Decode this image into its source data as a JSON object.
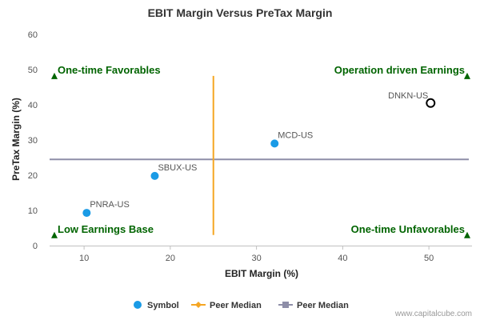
{
  "chart_data": {
    "type": "scatter",
    "title": "EBIT Margin Versus PreTax Margin",
    "xlabel": "EBIT Margin (%)",
    "ylabel": "PreTax Margin (%)",
    "xlim": [
      6,
      55
    ],
    "ylim": [
      0,
      60
    ],
    "xticks": [
      10,
      20,
      30,
      40,
      50
    ],
    "yticks": [
      0,
      10,
      20,
      30,
      40,
      50,
      60
    ],
    "grid": false,
    "points": [
      {
        "label": "PNRA-US",
        "x": 10.3,
        "y": 9.3,
        "style": "filled",
        "color": "#1a9be6"
      },
      {
        "label": "SBUX-US",
        "x": 18.2,
        "y": 19.8,
        "style": "filled",
        "color": "#1a9be6"
      },
      {
        "label": "MCD-US",
        "x": 32.1,
        "y": 29.0,
        "style": "filled",
        "color": "#1a9be6"
      },
      {
        "label": "DNKN-US",
        "x": 50.2,
        "y": 40.5,
        "style": "hollow",
        "color": "#000000"
      }
    ],
    "peer_median_x": 25.0,
    "peer_median_y": 24.5,
    "peer_median_x_color": "#f5a623",
    "peer_median_y_color": "#8e8ea8",
    "quadrants": [
      {
        "text": "One-time Favorables",
        "position": "top-left"
      },
      {
        "text": "Operation driven Earnings",
        "position": "top-right"
      },
      {
        "text": "Low Earnings Base",
        "position": "bottom-left"
      },
      {
        "text": "One-time Unfavorables",
        "position": "bottom-right"
      }
    ],
    "quadrant_color": "#006400",
    "legend": {
      "placement": "bottom",
      "items": [
        {
          "label": "Symbol",
          "marker": "circle",
          "color": "#1a9be6"
        },
        {
          "label": "Peer Median",
          "marker": "diamond-line",
          "color": "#f5a623"
        },
        {
          "label": "Peer Median",
          "marker": "square-line",
          "color": "#8e8ea8"
        }
      ]
    }
  },
  "credit": "www.capitalcube.com"
}
